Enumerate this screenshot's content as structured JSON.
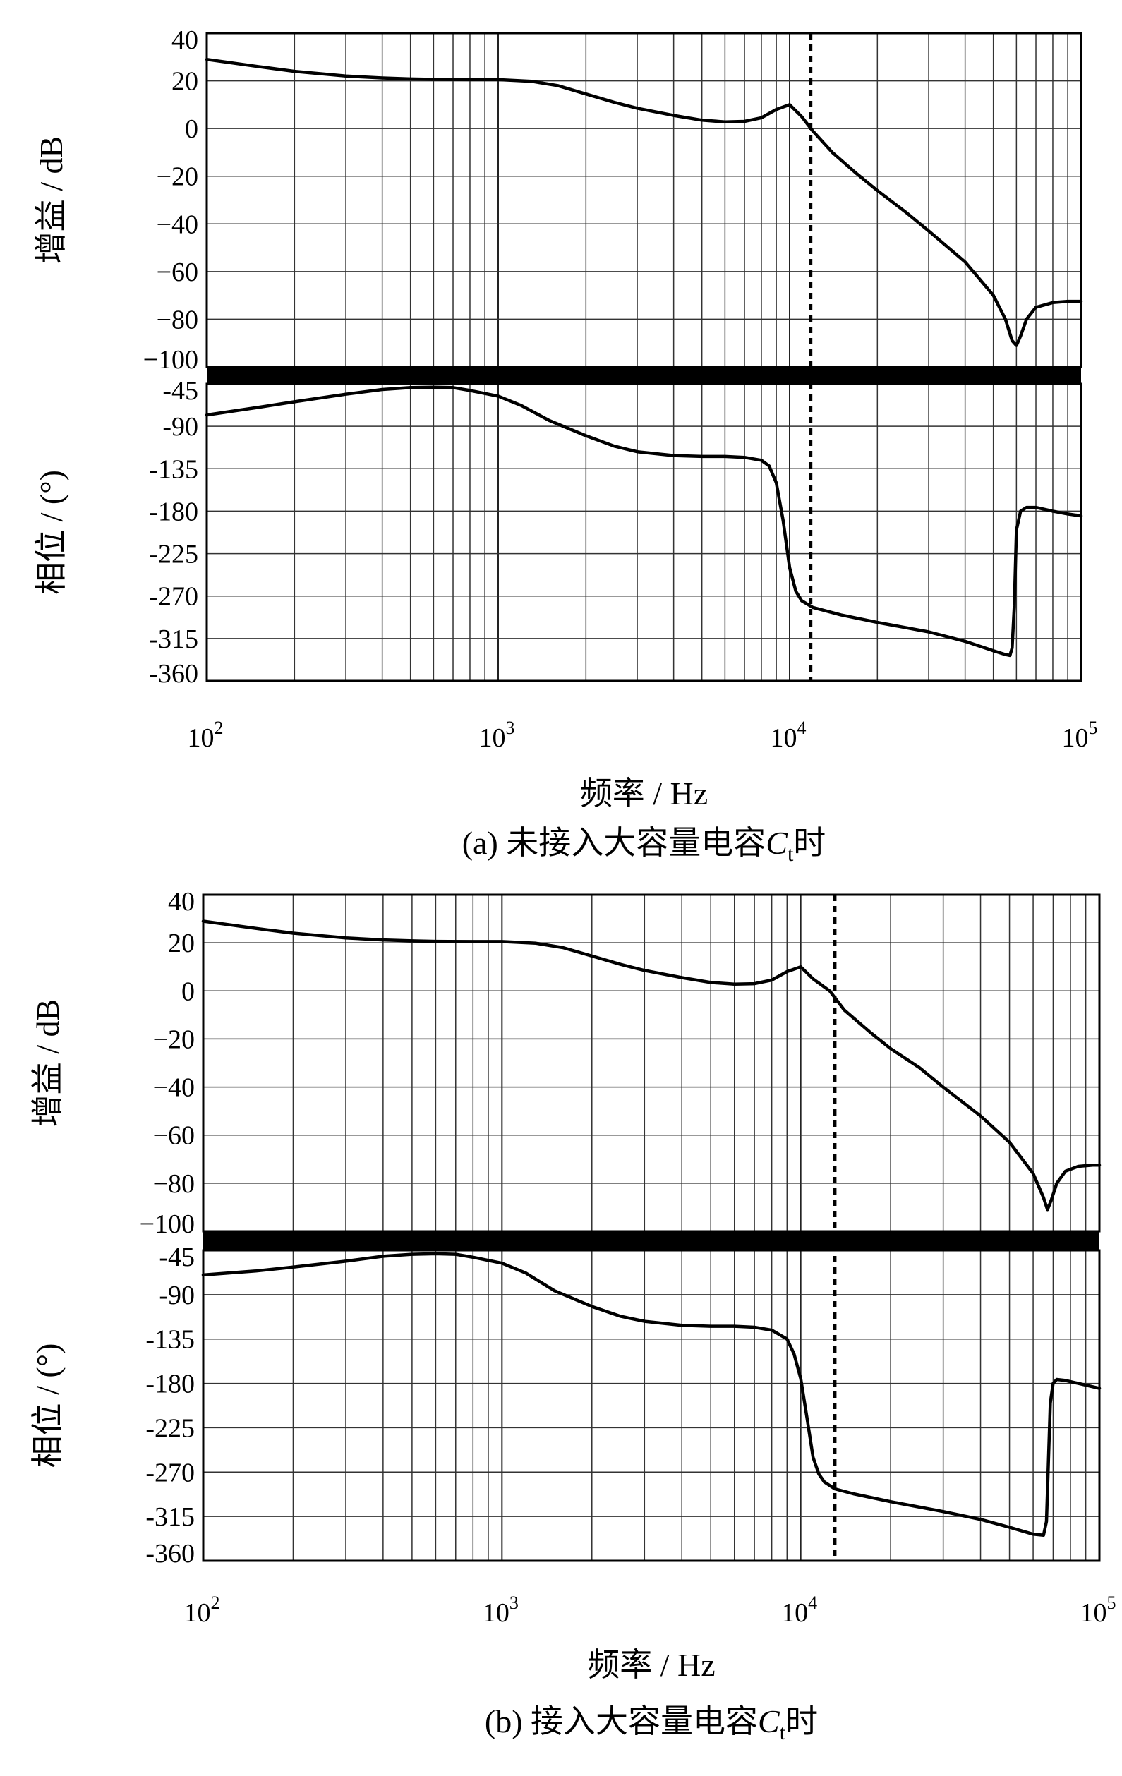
{
  "chart_data": [
    {
      "id": "a",
      "type": "line",
      "caption": {
        "prefix": "(a)  未接入大容量电容",
        "symbol": "C",
        "sub": "t",
        "suffix": "时"
      },
      "xlabel": "频率 / Hz",
      "x_scale": "log",
      "xlim": [
        100,
        100000
      ],
      "x_tick_labels": [
        {
          "base": "10",
          "exp": "2"
        },
        {
          "base": "10",
          "exp": "3"
        },
        {
          "base": "10",
          "exp": "4"
        },
        {
          "base": "10",
          "exp": "5"
        }
      ],
      "grid": true,
      "gain": {
        "ylabel": "增益 / dB",
        "ylim": [
          -100,
          40
        ],
        "yticks": [
          "40",
          "20",
          "0",
          "−20",
          "−40",
          "−60",
          "−80",
          "−100"
        ],
        "x": [
          100,
          150,
          200,
          300,
          400,
          500,
          600,
          800,
          1000,
          1300,
          1600,
          2000,
          2500,
          3000,
          4000,
          5000,
          6000,
          7000,
          8000,
          9000,
          10000,
          11000,
          12000,
          14000,
          17000,
          20000,
          25000,
          30000,
          40000,
          50000,
          55000,
          58000,
          60000,
          62000,
          65000,
          70000,
          80000,
          90000,
          100000
        ],
        "y": [
          29,
          26,
          24,
          22,
          21.2,
          20.8,
          20.6,
          20.5,
          20.5,
          19.8,
          18,
          14.5,
          11,
          8.5,
          5.5,
          3.5,
          2.8,
          3,
          4.5,
          8,
          10,
          5,
          -1,
          -10,
          -19,
          -26,
          -35,
          -43,
          -56,
          -70,
          -80,
          -89,
          -91,
          -87,
          -80,
          -75,
          -73,
          -72.5,
          -72.5
        ]
      },
      "phase": {
        "ylabel": "相位 / (°)",
        "ylim": [
          -360,
          -45
        ],
        "yticks": [
          "-45",
          "-90",
          "-135",
          "-180",
          "-225",
          "-270",
          "-315",
          "-360"
        ],
        "x": [
          100,
          150,
          200,
          300,
          400,
          500,
          600,
          700,
          800,
          1000,
          1200,
          1500,
          2000,
          2500,
          3000,
          4000,
          5000,
          6000,
          7000,
          8000,
          8500,
          9000,
          9500,
          10000,
          10500,
          11000,
          12000,
          15000,
          20000,
          30000,
          40000,
          50000,
          55000,
          57000,
          58000,
          59000,
          60000,
          62000,
          65000,
          70000,
          80000,
          90000,
          100000
        ],
        "y": [
          -78,
          -70,
          -64,
          -56,
          -51,
          -49,
          -48.5,
          -49,
          -52,
          -58,
          -68,
          -84,
          -100,
          -111,
          -117,
          -121,
          -122,
          -122,
          -123,
          -126,
          -132,
          -150,
          -190,
          -240,
          -265,
          -275,
          -282,
          -290,
          -298,
          -308,
          -318,
          -328,
          -332,
          -333,
          -325,
          -280,
          -200,
          -180,
          -176,
          -176,
          -180,
          -183,
          -185
        ]
      },
      "marker_x": 11800
    },
    {
      "id": "b",
      "type": "line",
      "caption": {
        "prefix": "(b)  接入大容量电容",
        "symbol": "C",
        "sub": "t",
        "suffix": "时"
      },
      "xlabel": "频率 / Hz",
      "x_scale": "log",
      "xlim": [
        100,
        100000
      ],
      "x_tick_labels": [
        {
          "base": "10",
          "exp": "2"
        },
        {
          "base": "10",
          "exp": "3"
        },
        {
          "base": "10",
          "exp": "4"
        },
        {
          "base": "10",
          "exp": "5"
        }
      ],
      "grid": true,
      "gain": {
        "ylabel": "增益 / dB",
        "ylim": [
          -100,
          40
        ],
        "yticks": [
          "40",
          "20",
          "0",
          "−20",
          "−40",
          "−60",
          "−80",
          "−100"
        ],
        "x": [
          100,
          150,
          200,
          300,
          400,
          500,
          600,
          800,
          1000,
          1300,
          1600,
          2000,
          2500,
          3000,
          4000,
          5000,
          6000,
          7000,
          8000,
          9000,
          10000,
          11000,
          12500,
          14000,
          17000,
          20000,
          25000,
          30000,
          40000,
          50000,
          60000,
          65000,
          67000,
          69000,
          72000,
          77000,
          85000,
          95000,
          100000
        ],
        "y": [
          29,
          26,
          24,
          22,
          21.2,
          20.8,
          20.6,
          20.5,
          20.5,
          19.8,
          18,
          14.5,
          11,
          8.5,
          5.5,
          3.5,
          2.8,
          3,
          4.5,
          8,
          10,
          5,
          0,
          -8,
          -17,
          -24,
          -32,
          -40,
          -52,
          -63,
          -76,
          -86,
          -91,
          -87,
          -80,
          -75,
          -73,
          -72.5,
          -72.5
        ]
      },
      "phase": {
        "ylabel": "相位 / (°)",
        "ylim": [
          -360,
          -45
        ],
        "yticks": [
          "-45",
          "-90",
          "-135",
          "-180",
          "-225",
          "-270",
          "-315",
          "-360"
        ],
        "x": [
          100,
          150,
          200,
          300,
          400,
          500,
          600,
          700,
          800,
          1000,
          1200,
          1500,
          2000,
          2500,
          3000,
          4000,
          5000,
          6000,
          7000,
          8000,
          9000,
          9500,
          10000,
          10500,
          11000,
          11500,
          12000,
          13000,
          15000,
          20000,
          30000,
          40000,
          50000,
          60000,
          65000,
          66500,
          67500,
          68500,
          70000,
          72000,
          77000,
          85000,
          100000
        ],
        "y": [
          -70,
          -66,
          -62,
          -56,
          -51,
          -49,
          -48.5,
          -49,
          -52,
          -58,
          -68,
          -86,
          -102,
          -112,
          -117,
          -121,
          -122,
          -122,
          -123,
          -126,
          -135,
          -150,
          -175,
          -215,
          -255,
          -272,
          -280,
          -287,
          -292,
          -300,
          -310,
          -318,
          -326,
          -333,
          -334,
          -320,
          -260,
          -200,
          -180,
          -176,
          -177,
          -180,
          -185
        ]
      },
      "marker_x": 13000
    }
  ]
}
